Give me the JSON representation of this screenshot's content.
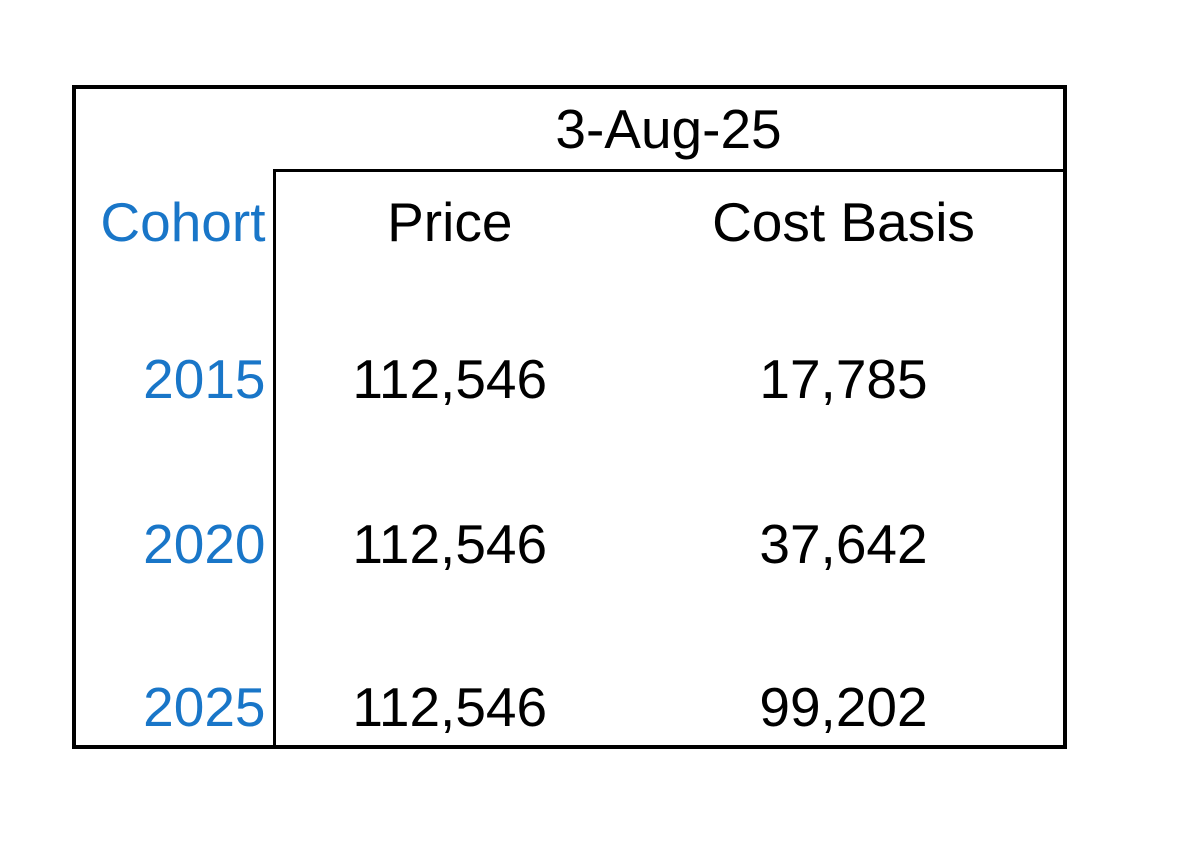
{
  "table": {
    "date_header": "3-Aug-25",
    "cohort_label": "Cohort",
    "columns": {
      "price": "Price",
      "cost_basis": "Cost Basis"
    },
    "rows": [
      {
        "cohort": "2015",
        "price": "112,546",
        "cost_basis": "17,785"
      },
      {
        "cohort": "2020",
        "price": "112,546",
        "cost_basis": "37,642"
      },
      {
        "cohort": "2025",
        "price": "112,546",
        "cost_basis": "99,202"
      }
    ],
    "colors": {
      "cohort_text": "#1976c8",
      "value_text": "#000000",
      "border": "#000000",
      "background": "#ffffff"
    }
  }
}
